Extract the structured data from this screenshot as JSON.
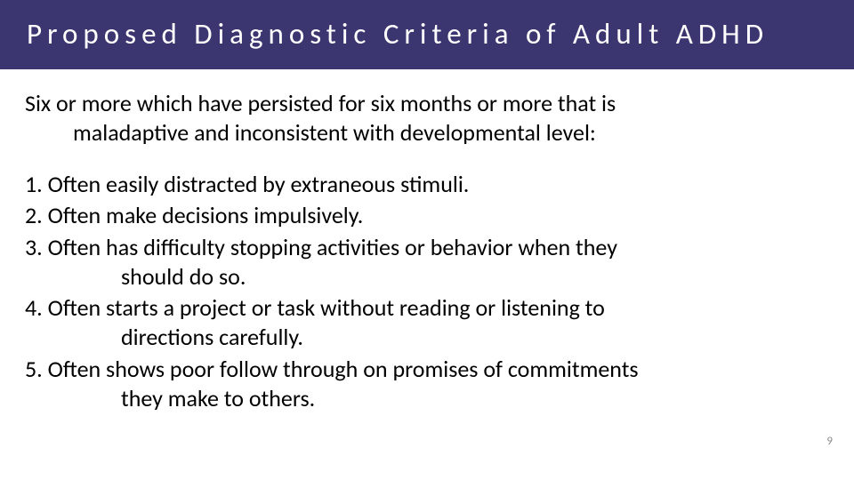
{
  "header": {
    "title": "Proposed Diagnostic Criteria of Adult ADHD",
    "bg_color": "#3b3570",
    "title_color": "#ffffff",
    "title_fontsize": 33
  },
  "body": {
    "text_color": "#000000",
    "fontsize": 26,
    "intro_line1": "Six or more which have persisted for six months or more that is",
    "intro_line2": "maladaptive and inconsistent with developmental level:",
    "items": [
      {
        "n": "1.",
        "line1": "Often easily distracted by extraneous stimuli."
      },
      {
        "n": "2.",
        "line1": "Often make decisions impulsively."
      },
      {
        "n": "3.",
        "line1": "Often has difficulty stopping activities or behavior when they",
        "line2": "should do so."
      },
      {
        "n": "4.",
        "line1": "Often starts a project or task without reading or listening to",
        "line2": "directions carefully."
      },
      {
        "n": "5.",
        "line1": "Often shows poor follow through on promises of commitments",
        "line2": "they make to others."
      }
    ]
  },
  "page_number": {
    "value": "9",
    "color": "#8a8a8a",
    "fontsize": 13
  }
}
